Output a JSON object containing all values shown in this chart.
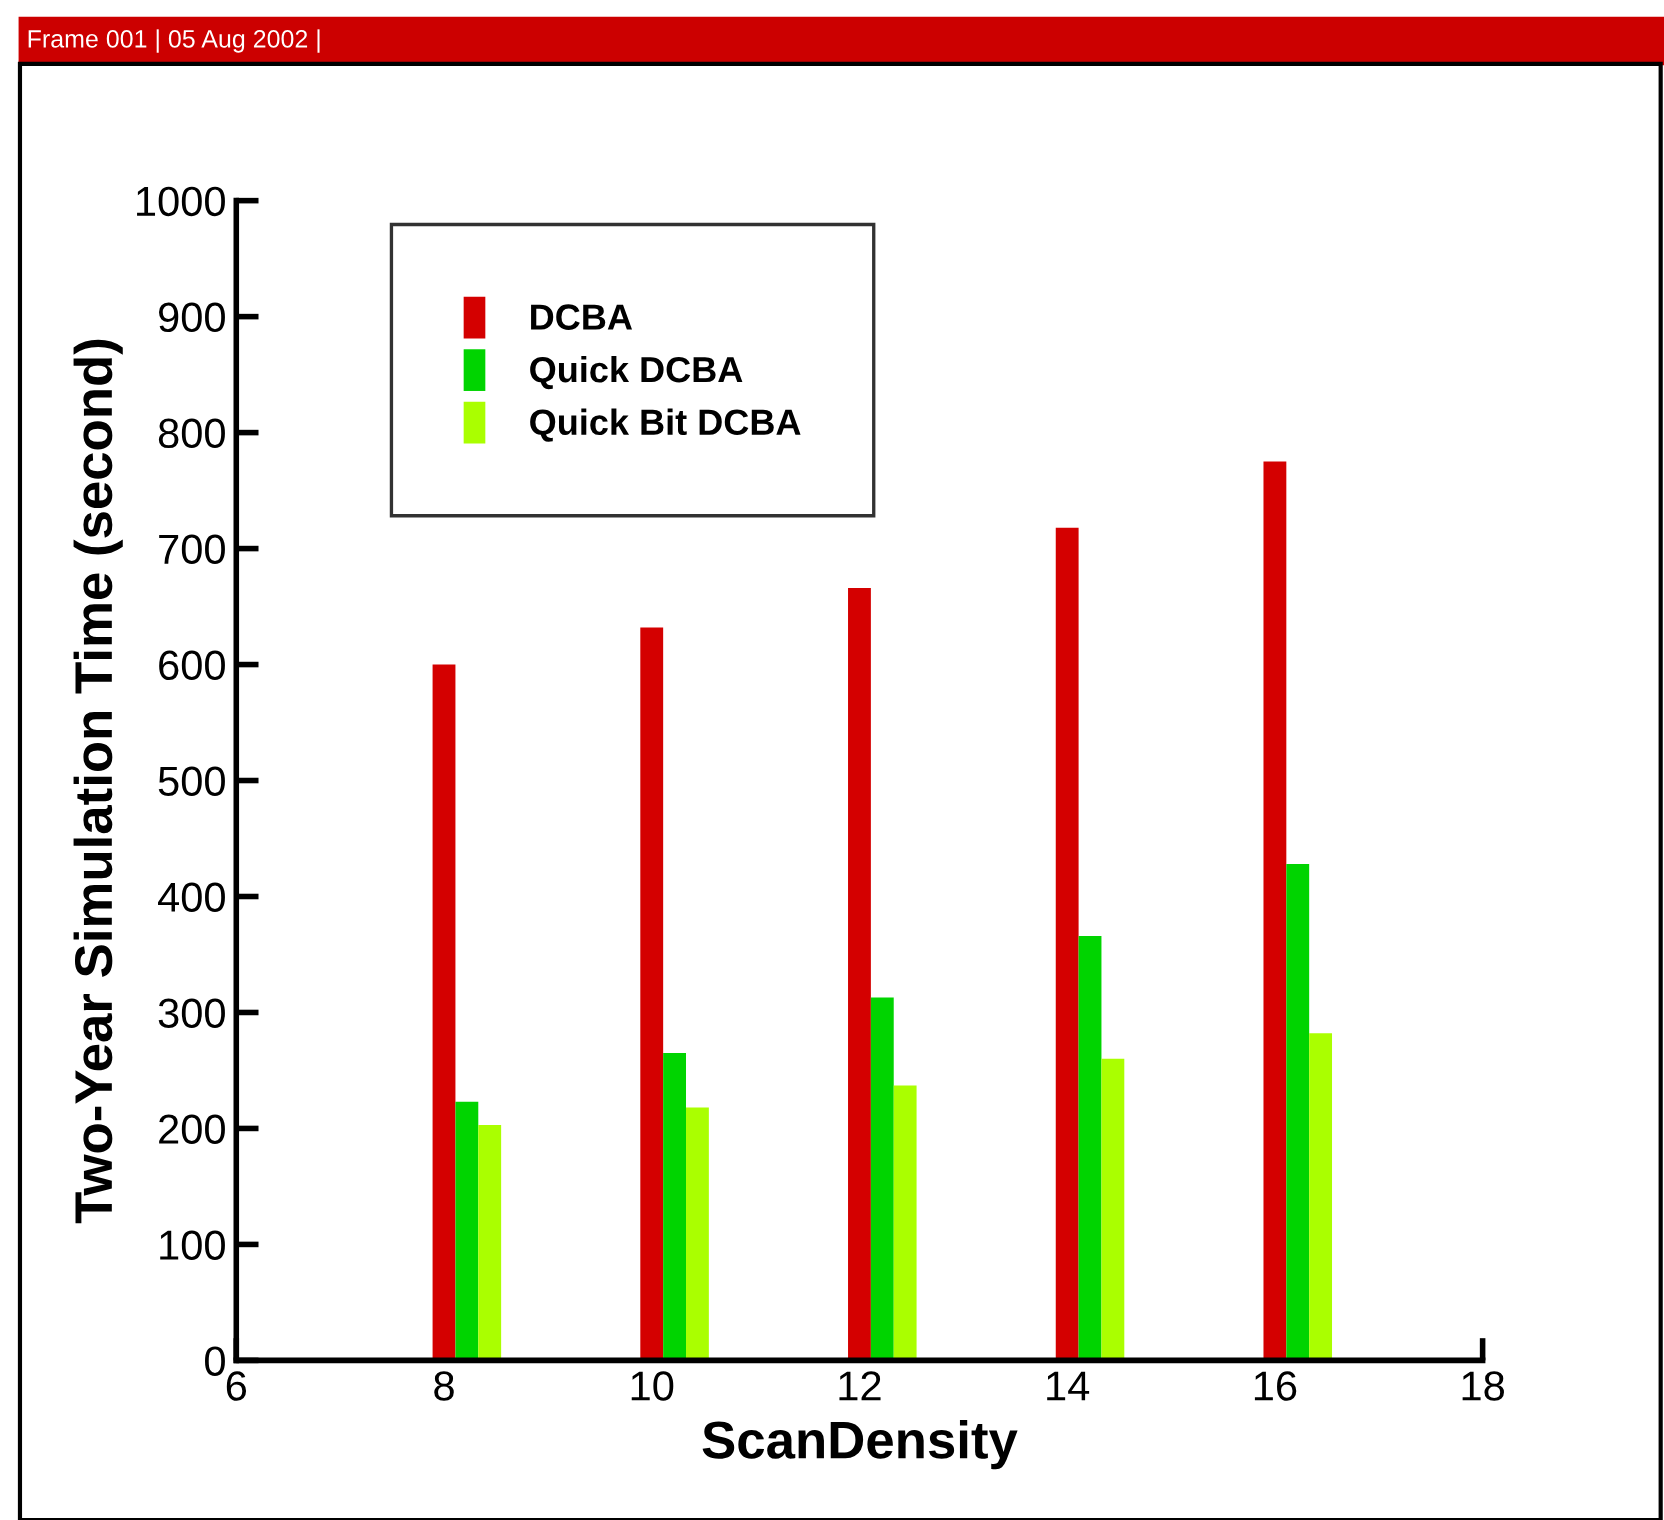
{
  "chart_data": {
    "type": "bar",
    "xlabel": "ScanDensity",
    "ylabel": "Two-Year Simulation Time (second)",
    "x": [
      8,
      10,
      12,
      14,
      16
    ],
    "series": [
      {
        "name": "DCBA",
        "color": "#d40000",
        "values": [
          600,
          632,
          666,
          718,
          775
        ]
      },
      {
        "name": "Quick DCBA",
        "color": "#00d400",
        "values": [
          223,
          265,
          313,
          366,
          428
        ]
      },
      {
        "name": "Quick Bit DCBA",
        "color": "#aaff00",
        "values": [
          203,
          218,
          237,
          260,
          282
        ]
      }
    ],
    "xlim": [
      6,
      18
    ],
    "xticks": [
      6,
      8,
      10,
      12,
      14,
      16,
      18
    ],
    "ylim": [
      0,
      1000
    ],
    "yticks": [
      0,
      100,
      200,
      300,
      400,
      500,
      600,
      700,
      800,
      900,
      1000
    ],
    "grid": false,
    "legend": "top left",
    "annotations": [
      "Frame 001 | 05 Aug 2002 |"
    ]
  }
}
